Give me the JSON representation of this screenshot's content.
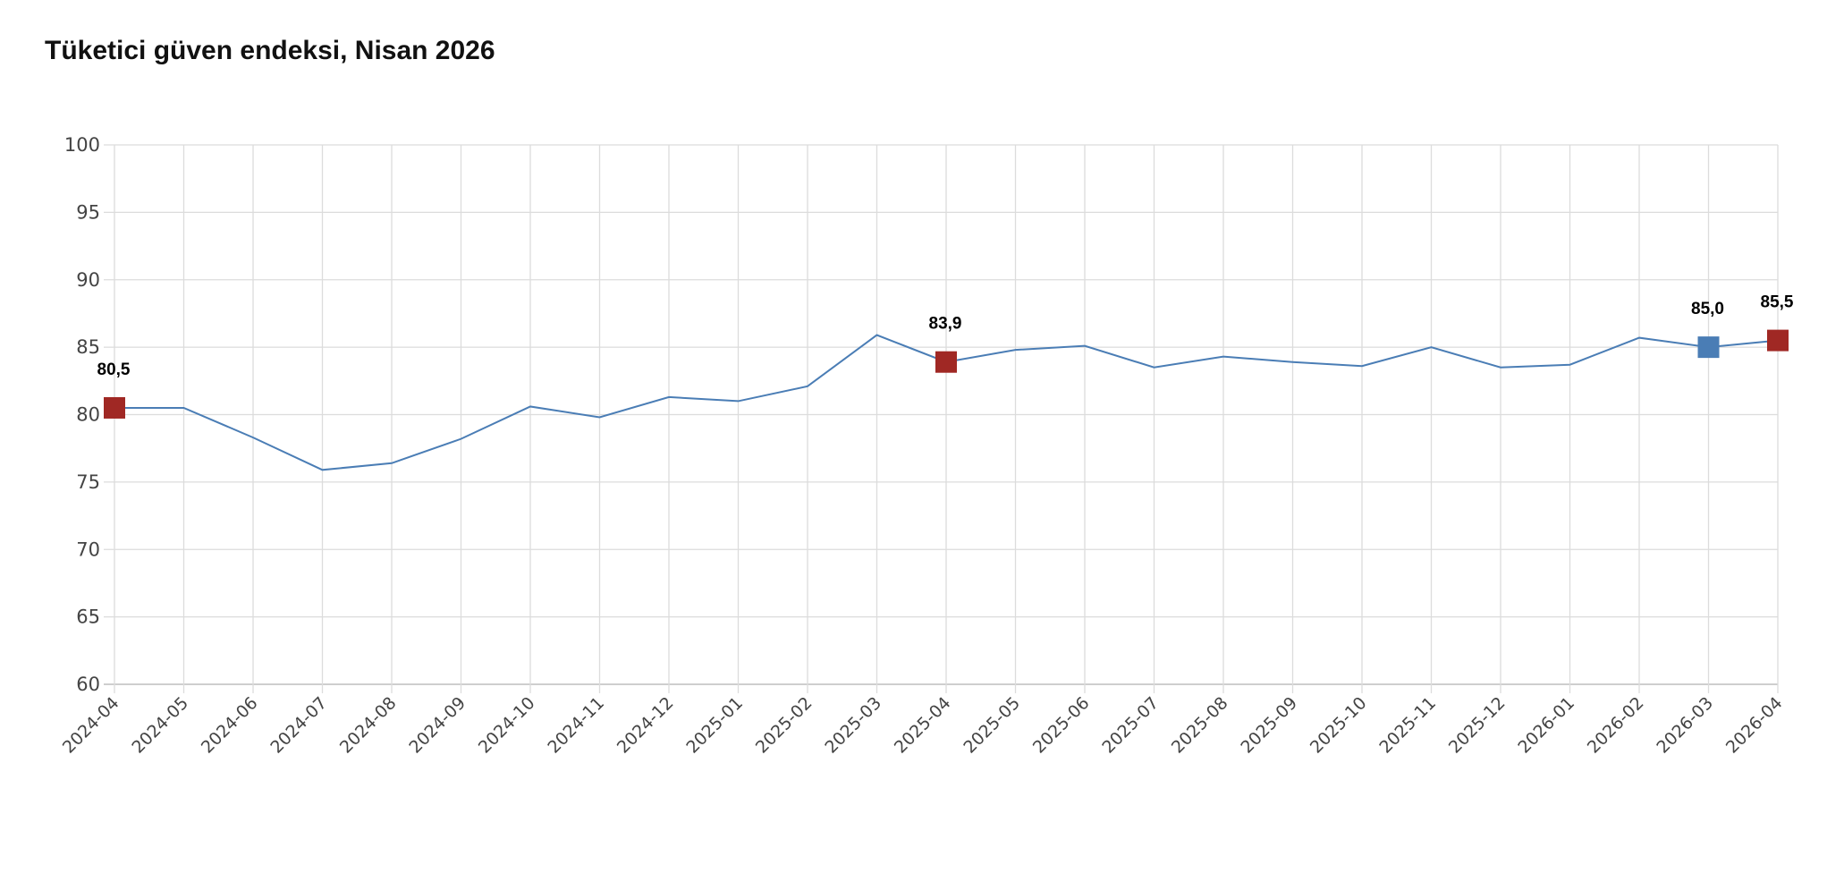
{
  "chart_data": {
    "type": "line",
    "title": "Tüketici güven endeksi, Nisan 2026",
    "xlabel": "",
    "ylabel": "",
    "ylim": [
      60,
      100
    ],
    "yticks": [
      60,
      65,
      70,
      75,
      80,
      85,
      90,
      95,
      100
    ],
    "grid": true,
    "categories": [
      "2024-04",
      "2024-05",
      "2024-06",
      "2024-07",
      "2024-08",
      "2024-09",
      "2024-10",
      "2024-11",
      "2024-12",
      "2025-01",
      "2025-02",
      "2025-03",
      "2025-04",
      "2025-05",
      "2025-06",
      "2025-07",
      "2025-08",
      "2025-09",
      "2025-10",
      "2025-11",
      "2025-12",
      "2026-01",
      "2026-02",
      "2026-03",
      "2026-04"
    ],
    "series": [
      {
        "values": [
          80.5,
          80.5,
          78.3,
          75.9,
          76.4,
          78.2,
          80.6,
          79.8,
          81.3,
          81.0,
          82.1,
          85.9,
          83.9,
          84.8,
          85.1,
          83.5,
          84.3,
          83.9,
          83.6,
          85.0,
          83.5,
          83.7,
          85.7,
          85.0,
          85.5
        ],
        "color": "#4a7db5"
      }
    ],
    "highlights": [
      {
        "category": "2024-04",
        "label": "80,5",
        "color": "#a02824"
      },
      {
        "category": "2025-04",
        "label": "83,9",
        "color": "#a02824"
      },
      {
        "category": "2026-03",
        "label": "85,0",
        "color": "#4a7db5"
      },
      {
        "category": "2026-04",
        "label": "85,5",
        "color": "#a02824"
      }
    ]
  }
}
